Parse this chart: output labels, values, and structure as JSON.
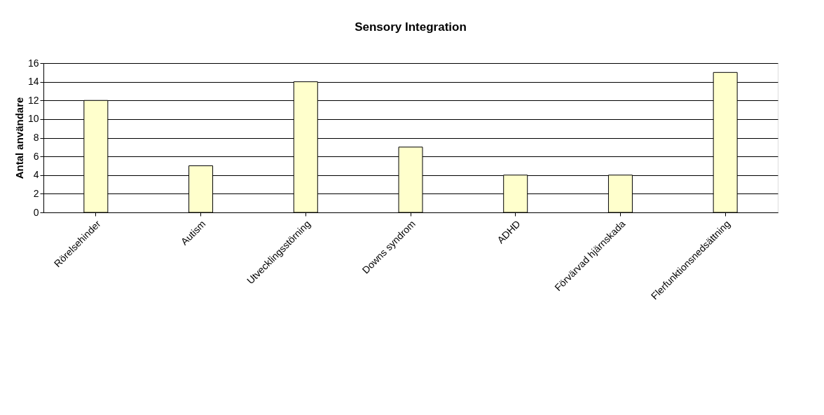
{
  "chart_data": {
    "type": "bar",
    "title": "Sensory Integration",
    "ylabel": "Antal användare",
    "categories": [
      "Rörelsehinder",
      "Autism",
      "Utvecklingsstörning",
      "Downs syndrom",
      "ADHD",
      "Förvärvad hjärnskada",
      "Flerfunktionsnedsättning"
    ],
    "values": [
      12,
      5,
      14,
      7,
      4,
      4,
      15
    ],
    "color": "#ffffcc",
    "ylim": [
      0,
      16
    ],
    "yticks": [
      0,
      2,
      4,
      6,
      8,
      10,
      12,
      14,
      16
    ],
    "grid": "y"
  }
}
